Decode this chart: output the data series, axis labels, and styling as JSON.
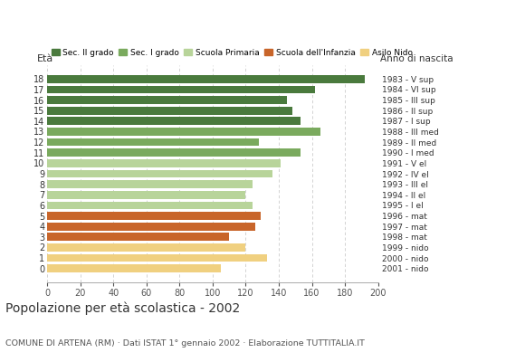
{
  "ages": [
    18,
    17,
    16,
    15,
    14,
    13,
    12,
    11,
    10,
    9,
    8,
    7,
    6,
    5,
    4,
    3,
    2,
    1,
    0
  ],
  "values": [
    192,
    162,
    145,
    148,
    153,
    165,
    128,
    153,
    141,
    136,
    124,
    120,
    124,
    129,
    126,
    110,
    120,
    133,
    105
  ],
  "right_labels": [
    "1983 - V sup",
    "1984 - VI sup",
    "1985 - III sup",
    "1986 - II sup",
    "1987 - I sup",
    "1988 - III med",
    "1989 - II med",
    "1990 - I med",
    "1991 - V el",
    "1992 - IV el",
    "1993 - III el",
    "1994 - II el",
    "1995 - I el",
    "1996 - mat",
    "1997 - mat",
    "1998 - mat",
    "1999 - nido",
    "2000 - nido",
    "2001 - nido"
  ],
  "colors": [
    "#4a7a3d",
    "#4a7a3d",
    "#4a7a3d",
    "#4a7a3d",
    "#4a7a3d",
    "#7aaa5e",
    "#7aaa5e",
    "#7aaa5e",
    "#b8d49a",
    "#b8d49a",
    "#b8d49a",
    "#b8d49a",
    "#b8d49a",
    "#c8652a",
    "#c8652a",
    "#c8652a",
    "#f0d080",
    "#f0d080",
    "#f0d080"
  ],
  "legend_labels": [
    "Sec. II grado",
    "Sec. I grado",
    "Scuola Primaria",
    "Scuola dell'Infanzia",
    "Asilo Nido"
  ],
  "legend_colors": [
    "#4a7a3d",
    "#7aaa5e",
    "#b8d49a",
    "#c8652a",
    "#f0d080"
  ],
  "title": "Popolazione per età scolastica - 2002",
  "subtitle": "COMUNE DI ARTENA (RM) · Dati ISTAT 1° gennaio 2002 · Elaborazione TUTTITALIA.IT",
  "ylabel": "Età",
  "right_header": "Anno di nascita",
  "xlim": [
    0,
    200
  ],
  "xticks": [
    0,
    20,
    40,
    60,
    80,
    100,
    120,
    140,
    160,
    180,
    200
  ],
  "background_color": "#ffffff",
  "bar_height": 0.75
}
